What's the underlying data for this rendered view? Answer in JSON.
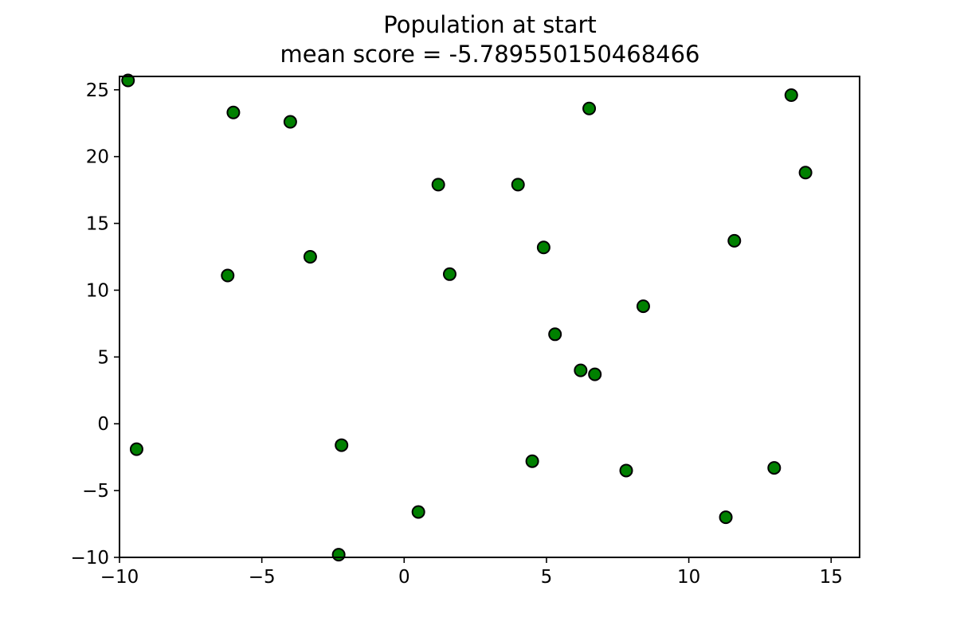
{
  "chart_data": {
    "type": "scatter",
    "title": "Population at start",
    "subtitle": "mean score = -5.789550150468466",
    "xlabel": "",
    "ylabel": "",
    "xlim": [
      -10,
      16
    ],
    "ylim": [
      -10,
      26
    ],
    "x_ticks": [
      -10,
      -5,
      0,
      5,
      10,
      15
    ],
    "y_ticks": [
      -10,
      -5,
      0,
      5,
      10,
      15,
      20,
      25
    ],
    "x_tick_labels": [
      "−10",
      "−5",
      "0",
      "5",
      "10",
      "15"
    ],
    "y_tick_labels": [
      "−10",
      "−5",
      "0",
      "5",
      "10",
      "15",
      "20",
      "25"
    ],
    "grid": false,
    "marker_color": "#008000",
    "marker_edge_color": "#000000",
    "points": [
      {
        "x": -9.7,
        "y": 25.7
      },
      {
        "x": -6.0,
        "y": 23.3
      },
      {
        "x": -4.0,
        "y": 22.6
      },
      {
        "x": 6.5,
        "y": 23.6
      },
      {
        "x": 13.6,
        "y": 24.6
      },
      {
        "x": 14.1,
        "y": 18.8
      },
      {
        "x": 1.2,
        "y": 17.9
      },
      {
        "x": 4.0,
        "y": 17.9
      },
      {
        "x": 11.6,
        "y": 13.7
      },
      {
        "x": 4.9,
        "y": 13.2
      },
      {
        "x": -3.3,
        "y": 12.5
      },
      {
        "x": -6.2,
        "y": 11.1
      },
      {
        "x": 1.6,
        "y": 11.2
      },
      {
        "x": 8.4,
        "y": 8.8
      },
      {
        "x": 5.3,
        "y": 6.7
      },
      {
        "x": 6.2,
        "y": 4.0
      },
      {
        "x": 6.7,
        "y": 3.7
      },
      {
        "x": -9.4,
        "y": -1.9
      },
      {
        "x": -2.2,
        "y": -1.6
      },
      {
        "x": 4.5,
        "y": -2.8
      },
      {
        "x": 7.8,
        "y": -3.5
      },
      {
        "x": 13.0,
        "y": -3.3
      },
      {
        "x": 0.5,
        "y": -6.6
      },
      {
        "x": 11.3,
        "y": -7.0
      },
      {
        "x": -2.3,
        "y": -9.8
      }
    ]
  }
}
